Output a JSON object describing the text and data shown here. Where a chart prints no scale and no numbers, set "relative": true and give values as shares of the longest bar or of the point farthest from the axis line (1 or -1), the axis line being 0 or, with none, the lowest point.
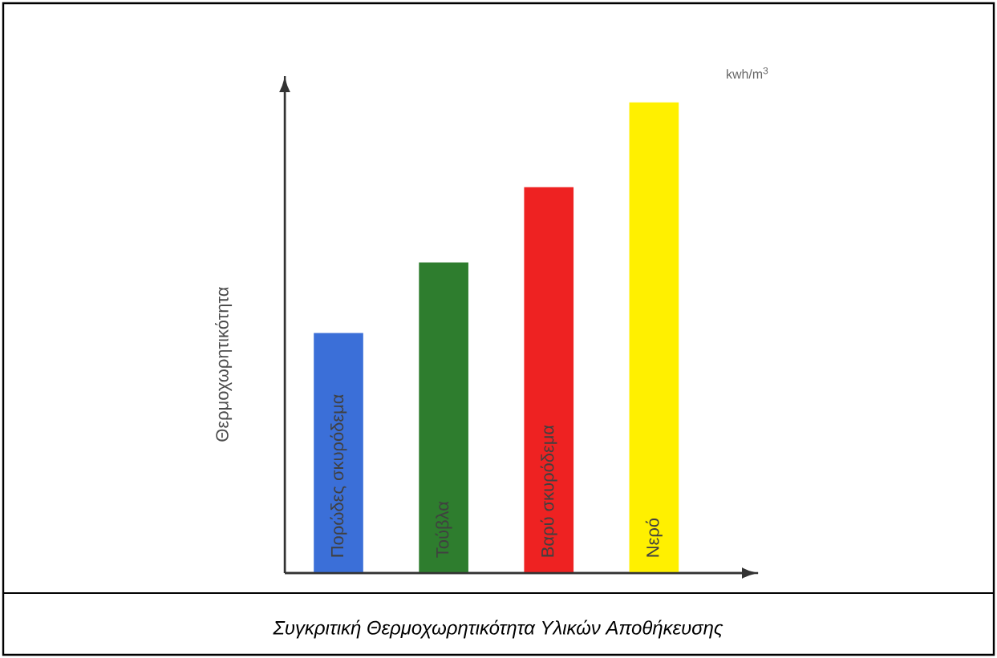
{
  "chart_data": {
    "type": "bar",
    "title": "*Συγκριτική Θερμοχωρητικότητα Υλικών Αποθήκευσης*",
    "ylabel": "Θερμοχωρητικότητα",
    "annotations": [
      "kwh/m$^{3}$"
    ],
    "categories": [
      "Πορώδες σκυρόδεμα",
      "Τούβλα",
      "Βαρύ σκυρόδεμα",
      "Νερό"
    ],
    "values": [
      0.51,
      0.66,
      0.82,
      1
    ],
    "colors": [
      "#3b6fd8",
      "#2e7d2e",
      "#ee2222",
      "#fff000"
    ],
    "relative": true
  }
}
